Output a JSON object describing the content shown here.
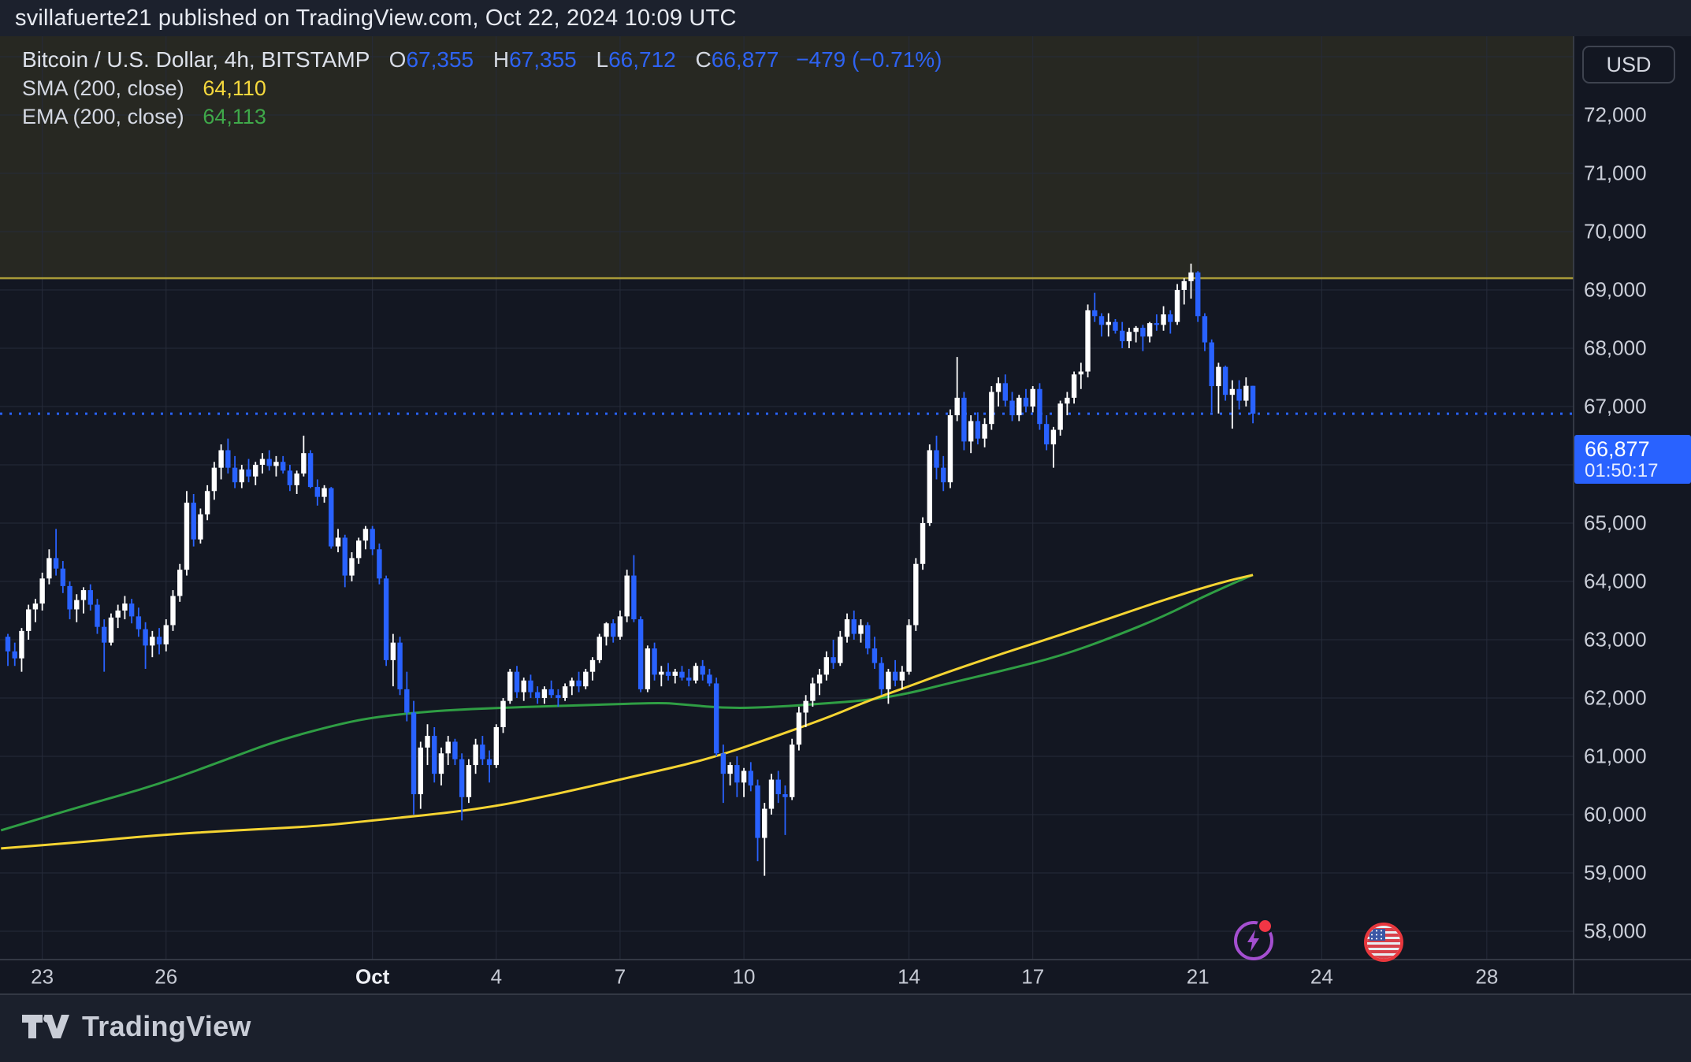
{
  "header": {
    "publish_line": "svillafuerte21 published on TradingView.com, Oct 22, 2024 10:09 UTC"
  },
  "legend": {
    "title": "Bitcoin / U.S. Dollar, 4h, BITSTAMP",
    "o": "O",
    "o_val": "67,355",
    "h": "H",
    "h_val": "67,355",
    "l": "L",
    "l_val": "66,712",
    "c": "C",
    "c_val": "66,877",
    "change": "−479 (−0.71%)"
  },
  "indicators": [
    {
      "label": "SMA (200, close)",
      "value": "64,110",
      "color": "#f5d83d"
    },
    {
      "label": "EMA (200, close)",
      "value": "64,113",
      "color": "#3fa94a"
    }
  ],
  "axis": {
    "currency": "USD"
  },
  "price_label": {
    "price": "66,877",
    "countdown": "01:50:17"
  },
  "footer": {
    "brand": "TradingView"
  },
  "colors": {
    "background": "#131722",
    "panel": "#1c212d",
    "grid": "#262b3a",
    "up": "#ffffff",
    "down": "#2962ff",
    "accent": "#2962ff",
    "sma": "#f5d432",
    "ema": "#2f9e44",
    "band_fill": "rgba(187,165,40,0.12)",
    "band_line": "#a89a38",
    "axis_text": "#cbcfd9",
    "border": "#3e434f"
  },
  "chart_data": {
    "type": "candlestick",
    "title": "Bitcoin / U.S. Dollar, 4h, BITSTAMP",
    "interval": "4h",
    "bars_per_day": 6,
    "first_bar_time": "2024-09-22 04:00 UTC",
    "last_bar_time": "2024-10-22 08:00 UTC",
    "ylim": [
      57513,
      73351
    ],
    "grid": true,
    "legend_position": "top-left",
    "levels": {
      "last_price": 66877,
      "band_bottom": 69200
    },
    "price_ticks": [
      {
        "label": "72,000",
        "value": 72000
      },
      {
        "label": "71,000",
        "value": 71000
      },
      {
        "label": "70,000",
        "value": 70000
      },
      {
        "label": "69,000",
        "value": 69000
      },
      {
        "label": "68,000",
        "value": 68000
      },
      {
        "label": "67,000",
        "value": 67000
      },
      {
        "label": "66,000",
        "value": 66000
      },
      {
        "label": "65,000",
        "value": 65000
      },
      {
        "label": "64,000",
        "value": 64000
      },
      {
        "label": "63,000",
        "value": 63000
      },
      {
        "label": "62,000",
        "value": 62000
      },
      {
        "label": "61,000",
        "value": 61000
      },
      {
        "label": "60,000",
        "value": 60000
      },
      {
        "label": "59,000",
        "value": 59000
      },
      {
        "label": "58,000",
        "value": 58000
      }
    ],
    "grid_prices": [
      58000,
      59000,
      60000,
      61000,
      62000,
      63000,
      64000,
      65000,
      66000,
      67000,
      68000,
      69000,
      70000,
      71000,
      72000,
      73000
    ],
    "time_ticks": [
      {
        "label": "23",
        "t": 5
      },
      {
        "label": "26",
        "t": 23
      },
      {
        "label": "Oct",
        "t": 53,
        "bold": true
      },
      {
        "label": "4",
        "t": 71
      },
      {
        "label": "7",
        "t": 89
      },
      {
        "label": "10",
        "t": 107
      },
      {
        "label": "14",
        "t": 131
      },
      {
        "label": "17",
        "t": 149
      },
      {
        "label": "21",
        "t": 173
      },
      {
        "label": "24",
        "t": 191
      },
      {
        "label": "28",
        "t": 215
      }
    ],
    "sma_points": [
      [
        -1,
        59420
      ],
      [
        10,
        59520
      ],
      [
        22,
        59650
      ],
      [
        33,
        59730
      ],
      [
        45,
        59800
      ],
      [
        53,
        59900
      ],
      [
        68,
        60080
      ],
      [
        79,
        60330
      ],
      [
        90,
        60630
      ],
      [
        102,
        60950
      ],
      [
        113,
        61400
      ],
      [
        120,
        61700
      ],
      [
        125,
        61950
      ],
      [
        131,
        62200
      ],
      [
        136,
        62420
      ],
      [
        145,
        62780
      ],
      [
        153,
        63080
      ],
      [
        161,
        63400
      ],
      [
        168,
        63680
      ],
      [
        174,
        63900
      ],
      [
        178,
        64030
      ],
      [
        181,
        64110
      ]
    ],
    "ema_points": [
      [
        -1,
        59730
      ],
      [
        10,
        60120
      ],
      [
        22,
        60520
      ],
      [
        33,
        61000
      ],
      [
        39,
        61260
      ],
      [
        47,
        61520
      ],
      [
        53,
        61670
      ],
      [
        62,
        61780
      ],
      [
        73,
        61840
      ],
      [
        85,
        61880
      ],
      [
        95,
        61920
      ],
      [
        98,
        61890
      ],
      [
        105,
        61820
      ],
      [
        112,
        61850
      ],
      [
        118,
        61900
      ],
      [
        125,
        61960
      ],
      [
        131,
        62080
      ],
      [
        136,
        62230
      ],
      [
        145,
        62480
      ],
      [
        153,
        62720
      ],
      [
        161,
        63060
      ],
      [
        168,
        63400
      ],
      [
        174,
        63750
      ],
      [
        178,
        63960
      ],
      [
        181,
        64113
      ]
    ],
    "candles": [
      [
        63050,
        63100,
        62550,
        62800
      ],
      [
        62800,
        62950,
        62550,
        62680
      ],
      [
        62680,
        63200,
        62450,
        63150
      ],
      [
        63150,
        63600,
        63000,
        63520
      ],
      [
        63520,
        63700,
        63300,
        63620
      ],
      [
        63620,
        64150,
        63500,
        64050
      ],
      [
        64050,
        64550,
        63950,
        64400
      ],
      [
        64400,
        64900,
        64100,
        64220
      ],
      [
        64220,
        64350,
        63800,
        63920
      ],
      [
        63920,
        64000,
        63350,
        63520
      ],
      [
        63520,
        63780,
        63300,
        63680
      ],
      [
        63680,
        63900,
        63450,
        63850
      ],
      [
        63850,
        63950,
        63500,
        63600
      ],
      [
        63600,
        63700,
        63100,
        63220
      ],
      [
        63220,
        63350,
        62450,
        62950
      ],
      [
        62950,
        63450,
        62900,
        63380
      ],
      [
        63380,
        63600,
        63200,
        63500
      ],
      [
        63500,
        63750,
        63350,
        63620
      ],
      [
        63620,
        63700,
        63280,
        63400
      ],
      [
        63400,
        63550,
        63050,
        63180
      ],
      [
        63180,
        63300,
        62500,
        62900
      ],
      [
        62900,
        63150,
        62700,
        63050
      ],
      [
        63050,
        63200,
        62750,
        62920
      ],
      [
        62920,
        63350,
        62800,
        63250
      ],
      [
        63250,
        63850,
        63150,
        63750
      ],
      [
        63750,
        64300,
        63650,
        64200
      ],
      [
        64200,
        65550,
        64100,
        65350
      ],
      [
        65350,
        65500,
        64600,
        64720
      ],
      [
        64720,
        65250,
        64650,
        65150
      ],
      [
        65150,
        65650,
        65050,
        65550
      ],
      [
        65550,
        66050,
        65400,
        65950
      ],
      [
        65950,
        66350,
        65750,
        66250
      ],
      [
        66250,
        66450,
        65850,
        65950
      ],
      [
        65950,
        66150,
        65600,
        65700
      ],
      [
        65700,
        66000,
        65600,
        65920
      ],
      [
        65920,
        66100,
        65700,
        65800
      ],
      [
        65800,
        66050,
        65650,
        66000
      ],
      [
        66000,
        66200,
        65850,
        66100
      ],
      [
        66100,
        66250,
        65900,
        65980
      ],
      [
        65980,
        66150,
        65800,
        66050
      ],
      [
        66050,
        66150,
        65850,
        65900
      ],
      [
        65900,
        66000,
        65550,
        65650
      ],
      [
        65650,
        65900,
        65500,
        65850
      ],
      [
        65850,
        66500,
        65800,
        66200
      ],
      [
        66200,
        66250,
        65600,
        65620
      ],
      [
        65620,
        65750,
        65300,
        65450
      ],
      [
        65450,
        65650,
        65350,
        65600
      ],
      [
        65600,
        65620,
        64560,
        64600
      ],
      [
        64600,
        64900,
        64500,
        64750
      ],
      [
        64750,
        64800,
        63900,
        64100
      ],
      [
        64100,
        64500,
        64000,
        64400
      ],
      [
        64400,
        64750,
        64300,
        64700
      ],
      [
        64700,
        64950,
        64550,
        64900
      ],
      [
        64900,
        64950,
        64450,
        64550
      ],
      [
        64550,
        64650,
        63950,
        64050
      ],
      [
        64050,
        64100,
        62550,
        62650
      ],
      [
        62650,
        63100,
        62200,
        62950
      ],
      [
        62950,
        63050,
        62050,
        62150
      ],
      [
        62150,
        62450,
        61600,
        61750
      ],
      [
        61750,
        61950,
        60000,
        60350
      ],
      [
        60350,
        61250,
        60100,
        61150
      ],
      [
        61150,
        61550,
        60850,
        61350
      ],
      [
        61350,
        61500,
        60550,
        60700
      ],
      [
        60700,
        61150,
        60500,
        61050
      ],
      [
        61050,
        61350,
        60850,
        61250
      ],
      [
        61250,
        61300,
        60850,
        60950
      ],
      [
        60950,
        61050,
        59900,
        60300
      ],
      [
        60300,
        60950,
        60200,
        60850
      ],
      [
        60850,
        61300,
        60700,
        61200
      ],
      [
        61200,
        61350,
        60850,
        60950
      ],
      [
        60950,
        61100,
        60550,
        60850
      ],
      [
        60850,
        61550,
        60800,
        61500
      ],
      [
        61500,
        62000,
        61400,
        61950
      ],
      [
        61950,
        62500,
        61900,
        62450
      ],
      [
        62450,
        62550,
        62000,
        62100
      ],
      [
        62100,
        62350,
        61950,
        62300
      ],
      [
        62300,
        62400,
        62000,
        62100
      ],
      [
        62100,
        62200,
        61900,
        62000
      ],
      [
        62000,
        62200,
        61900,
        62150
      ],
      [
        62150,
        62300,
        62000,
        62050
      ],
      [
        62050,
        62150,
        61850,
        62000
      ],
      [
        62000,
        62250,
        61950,
        62200
      ],
      [
        62200,
        62350,
        62050,
        62300
      ],
      [
        62300,
        62450,
        62100,
        62200
      ],
      [
        62200,
        62500,
        62150,
        62450
      ],
      [
        62450,
        62700,
        62300,
        62650
      ],
      [
        62650,
        63100,
        62600,
        63050
      ],
      [
        63050,
        63300,
        62900,
        63280
      ],
      [
        63280,
        63350,
        62950,
        63050
      ],
      [
        63050,
        63500,
        63000,
        63400
      ],
      [
        63400,
        64200,
        63300,
        64100
      ],
      [
        64100,
        64450,
        63300,
        63350
      ],
      [
        63350,
        63400,
        62100,
        62150
      ],
      [
        62150,
        62900,
        62100,
        62850
      ],
      [
        62850,
        62950,
        62300,
        62400
      ],
      [
        62400,
        62550,
        62200,
        62450
      ],
      [
        62450,
        62600,
        62300,
        62380
      ],
      [
        62380,
        62500,
        62250,
        62450
      ],
      [
        62450,
        62550,
        62300,
        62350
      ],
      [
        62350,
        62500,
        62200,
        62300
      ],
      [
        62300,
        62600,
        62250,
        62550
      ],
      [
        62550,
        62650,
        62300,
        62400
      ],
      [
        62400,
        62500,
        62200,
        62250
      ],
      [
        62250,
        62350,
        61000,
        61050
      ],
      [
        61050,
        61200,
        60200,
        60700
      ],
      [
        60700,
        60900,
        60500,
        60850
      ],
      [
        60850,
        61000,
        60300,
        60550
      ],
      [
        60550,
        60800,
        60300,
        60750
      ],
      [
        60750,
        60900,
        60400,
        60500
      ],
      [
        60500,
        60600,
        59200,
        59600
      ],
      [
        59600,
        60200,
        58950,
        60100
      ],
      [
        60100,
        60700,
        60000,
        60600
      ],
      [
        60600,
        60750,
        60200,
        60350
      ],
      [
        60350,
        60500,
        59650,
        60300
      ],
      [
        60300,
        61300,
        60250,
        61200
      ],
      [
        61200,
        61850,
        61100,
        61750
      ],
      [
        61750,
        62050,
        61500,
        61950
      ],
      [
        61950,
        62350,
        61850,
        62250
      ],
      [
        62250,
        62500,
        62050,
        62400
      ],
      [
        62400,
        62800,
        62300,
        62700
      ],
      [
        62700,
        63000,
        62500,
        62600
      ],
      [
        62600,
        63150,
        62550,
        63050
      ],
      [
        63050,
        63450,
        62950,
        63350
      ],
      [
        63350,
        63500,
        63000,
        63100
      ],
      [
        63100,
        63350,
        62950,
        63250
      ],
      [
        63250,
        63300,
        62750,
        62850
      ],
      [
        62850,
        63050,
        62500,
        62600
      ],
      [
        62600,
        62700,
        62050,
        62150
      ],
      [
        62150,
        62500,
        61900,
        62450
      ],
      [
        62450,
        62650,
        62200,
        62300
      ],
      [
        62300,
        62550,
        62150,
        62450
      ],
      [
        62450,
        63350,
        62400,
        63250
      ],
      [
        63250,
        64400,
        63150,
        64300
      ],
      [
        64300,
        65100,
        64200,
        65000
      ],
      [
        65000,
        66350,
        64950,
        66250
      ],
      [
        66250,
        66500,
        65750,
        65950
      ],
      [
        65950,
        66150,
        65550,
        65700
      ],
      [
        65700,
        66950,
        65600,
        66850
      ],
      [
        66850,
        67850,
        66750,
        67150
      ],
      [
        67150,
        67250,
        66250,
        66400
      ],
      [
        66400,
        66850,
        66200,
        66750
      ],
      [
        66750,
        66900,
        66350,
        66450
      ],
      [
        66450,
        66800,
        66300,
        66700
      ],
      [
        66700,
        67350,
        66600,
        67250
      ],
      [
        67250,
        67500,
        67000,
        67400
      ],
      [
        67400,
        67550,
        67000,
        67100
      ],
      [
        67100,
        67250,
        66750,
        66850
      ],
      [
        66850,
        67200,
        66750,
        67150
      ],
      [
        67150,
        67300,
        66900,
        67000
      ],
      [
        67000,
        67350,
        66900,
        67300
      ],
      [
        67300,
        67400,
        66600,
        66700
      ],
      [
        66700,
        66850,
        66250,
        66350
      ],
      [
        66350,
        66650,
        65950,
        66600
      ],
      [
        66600,
        67100,
        66500,
        67050
      ],
      [
        67050,
        67250,
        66850,
        67150
      ],
      [
        67150,
        67600,
        67050,
        67550
      ],
      [
        67550,
        67750,
        67300,
        67600
      ],
      [
        67600,
        68750,
        67500,
        68650
      ],
      [
        68650,
        68950,
        68450,
        68550
      ],
      [
        68550,
        68600,
        68200,
        68400
      ],
      [
        68400,
        68600,
        68200,
        68450
      ],
      [
        68450,
        68500,
        68250,
        68300
      ],
      [
        68300,
        68450,
        68000,
        68120
      ],
      [
        68120,
        68350,
        68000,
        68280
      ],
      [
        68280,
        68380,
        68100,
        68350
      ],
      [
        68350,
        68400,
        67950,
        68200
      ],
      [
        68200,
        68450,
        68100,
        68430
      ],
      [
        68430,
        68580,
        68300,
        68400
      ],
      [
        68400,
        68720,
        68300,
        68580
      ],
      [
        68580,
        68650,
        68250,
        68450
      ],
      [
        68450,
        69100,
        68400,
        69000
      ],
      [
        69000,
        69200,
        68750,
        69150
      ],
      [
        69150,
        69450,
        68850,
        69300
      ],
      [
        69300,
        69320,
        68450,
        68550
      ],
      [
        68550,
        68600,
        67950,
        68100
      ],
      [
        68100,
        68150,
        66900,
        67350
      ],
      [
        67350,
        67750,
        66880,
        67680
      ],
      [
        67680,
        67700,
        67100,
        67200
      ],
      [
        67200,
        67450,
        66620,
        67300
      ],
      [
        67300,
        67450,
        66950,
        67100
      ],
      [
        67100,
        67500,
        67000,
        67355
      ],
      [
        67355,
        67355,
        66712,
        66877
      ]
    ]
  }
}
